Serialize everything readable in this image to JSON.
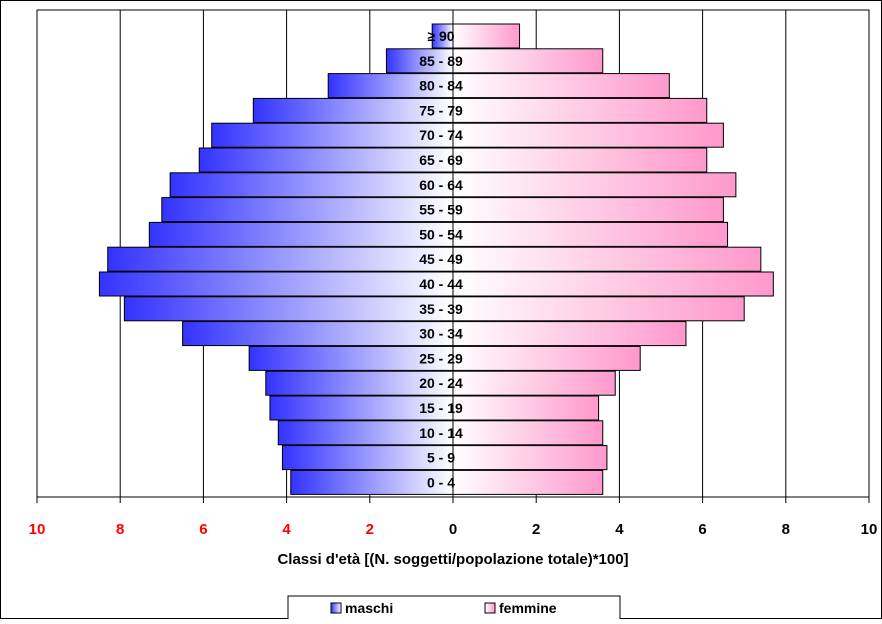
{
  "chart_data": {
    "type": "bar",
    "orientation": "horizontal-population-pyramid",
    "xlabel": "Classi d'età [(N. soggetti/popolazione totale)*100]",
    "xlim": [
      -10,
      10
    ],
    "x_ticks": [
      -10,
      -8,
      -6,
      -4,
      -2,
      0,
      2,
      4,
      6,
      8,
      10
    ],
    "x_tick_labels": [
      "10",
      "8",
      "6",
      "4",
      "2",
      "0",
      "2",
      "4",
      "6",
      "8",
      "10"
    ],
    "grid": "vertical",
    "legend": "bottom",
    "categories": [
      "0 - 4",
      "5 - 9",
      "10 - 14",
      "15 - 19",
      "20 - 24",
      "25 - 29",
      "30 - 34",
      "35 - 39",
      "40 - 44",
      "45 - 49",
      "50 - 54",
      "55 - 59",
      "60 - 64",
      "65 - 69",
      "70 - 74",
      "75 - 79",
      "80 - 84",
      "85 - 89",
      "≥ 90"
    ],
    "series": [
      {
        "name": "maschi",
        "color": "#3333ff",
        "values": [
          3.9,
          4.1,
          4.2,
          4.4,
          4.5,
          4.9,
          6.5,
          7.9,
          8.5,
          8.3,
          7.3,
          7.0,
          6.8,
          6.1,
          5.8,
          4.8,
          3.0,
          1.6,
          0.5
        ]
      },
      {
        "name": "femmine",
        "color": "#ff99cc",
        "values": [
          3.6,
          3.7,
          3.6,
          3.5,
          3.9,
          4.5,
          5.6,
          7.0,
          7.7,
          7.4,
          6.6,
          6.5,
          6.8,
          6.1,
          6.5,
          6.1,
          5.2,
          3.6,
          1.6
        ]
      }
    ]
  },
  "colors": {
    "negative_tick": "#ff0000",
    "positive_tick": "#000000",
    "male_dark": "#3333ff",
    "male_light": "#ffffff",
    "female_dark": "#ff99cc",
    "female_light": "#ffffff",
    "grid": "#000000"
  }
}
